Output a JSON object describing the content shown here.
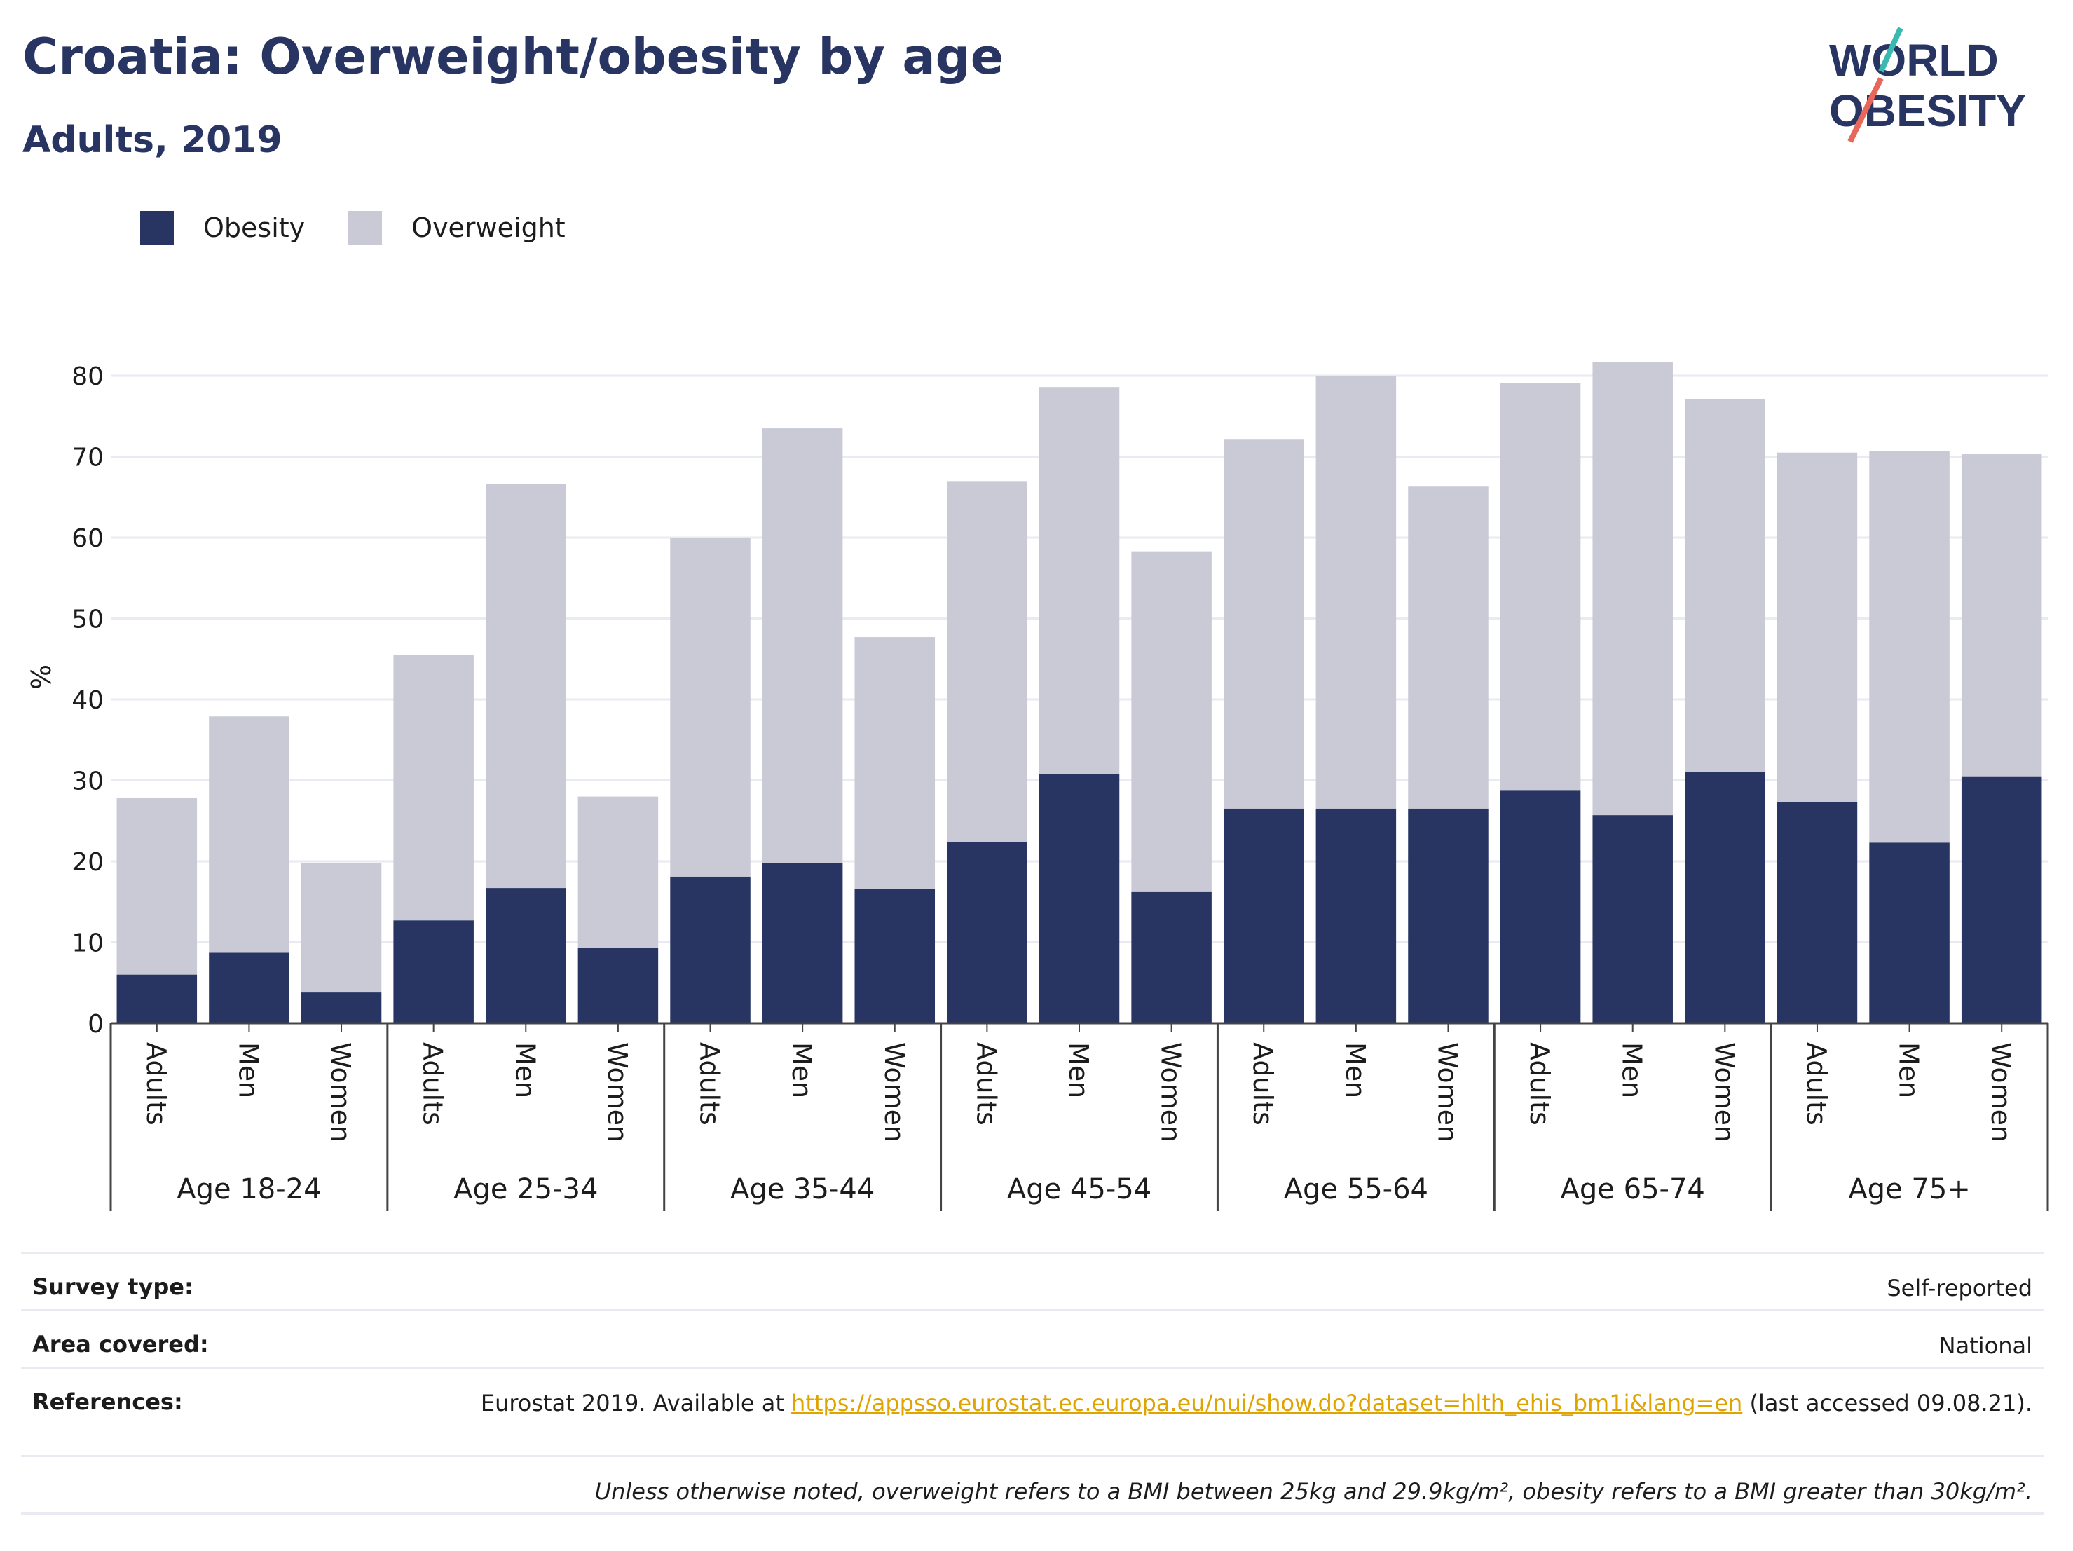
{
  "title": "Croatia: Overweight/obesity by age",
  "subtitle": "Adults, 2019",
  "logo": {
    "line1": "WORLD",
    "line2": "OBESITY"
  },
  "colors": {
    "obesity": "#283562",
    "overweight": "#c9cad6",
    "title": "#283562",
    "link": "#e0a400"
  },
  "chart_data": {
    "type": "bar",
    "stacked": true,
    "ylabel": "%",
    "ylim": [
      0,
      80
    ],
    "yticks": [
      0,
      10,
      20,
      30,
      40,
      50,
      60,
      70,
      80
    ],
    "grid": true,
    "legend_position": "top-left",
    "groups": [
      "Age 18-24",
      "Age 25-34",
      "Age 35-44",
      "Age 45-54",
      "Age 55-64",
      "Age 65-74",
      "Age 75+"
    ],
    "subcategories": [
      "Adults",
      "Men",
      "Women"
    ],
    "series": [
      {
        "name": "Obesity",
        "values": [
          6,
          8.7,
          3.8,
          12.7,
          16.7,
          9.3,
          18.1,
          19.8,
          16.6,
          22.4,
          30.8,
          16.2,
          26.5,
          26.5,
          26.5,
          28.8,
          25.7,
          31,
          27.3,
          22.3,
          30.5
        ]
      },
      {
        "name": "Overweight",
        "values": [
          21.8,
          29.2,
          16,
          32.8,
          49.9,
          18.7,
          41.9,
          53.7,
          31.1,
          44.5,
          47.8,
          42.1,
          45.6,
          53.5,
          39.8,
          50.3,
          56,
          46.1,
          43.2,
          48.4,
          39.8
        ]
      }
    ]
  },
  "info": {
    "survey_type": {
      "label": "Survey type:",
      "value": "Self-reported"
    },
    "area_covered": {
      "label": "Area covered:",
      "value": "National"
    },
    "references": {
      "label": "References:",
      "prefix": "Eurostat 2019. Available at ",
      "link": "https://appsso.eurostat.ec.europa.eu/nui/show.do?dataset=hlth_ehis_bm1i&lang=en",
      "suffix": " (last accessed 09.08.21)."
    },
    "note": "Unless otherwise noted, overweight refers to a BMI between 25kg and 29.9kg/m², obesity refers to a BMI greater than 30kg/m²."
  }
}
